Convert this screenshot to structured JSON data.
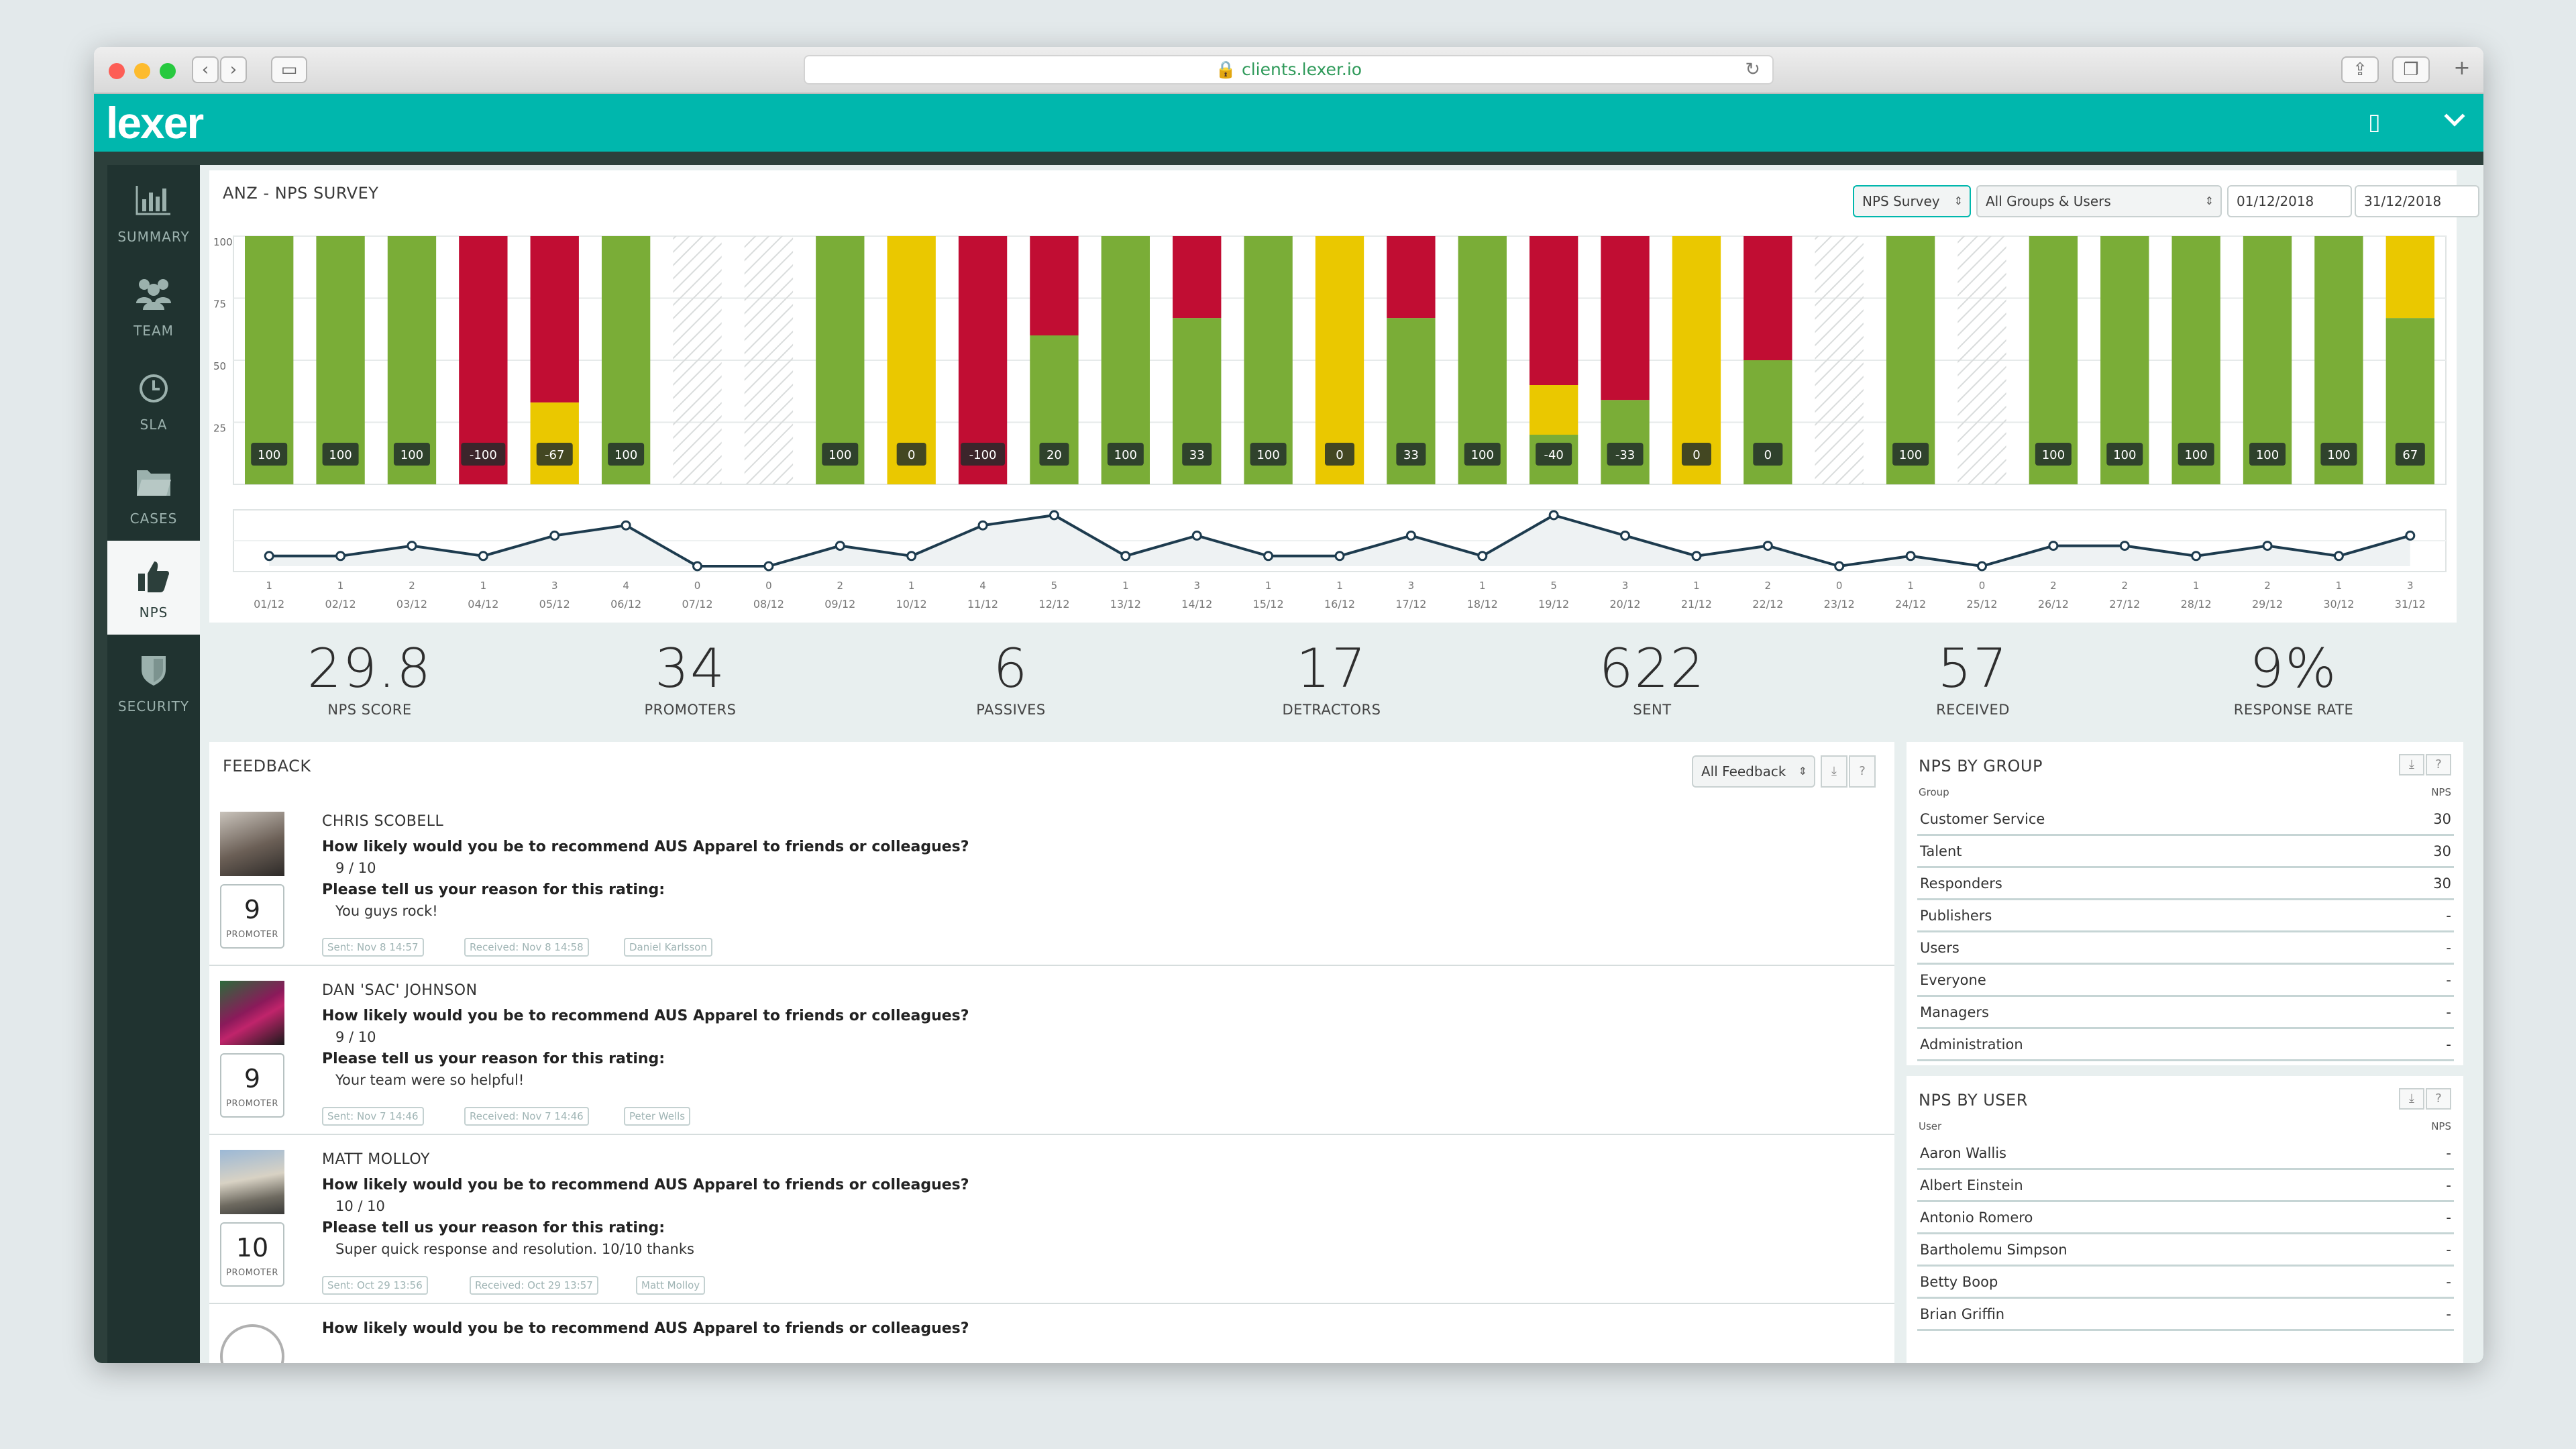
{
  "browser": {
    "url": "clients.lexer.io"
  },
  "app": {
    "logo_text": "lexer"
  },
  "sidebar": {
    "items": [
      {
        "label": "SUMMARY",
        "icon": "bar-chart-icon"
      },
      {
        "label": "TEAM",
        "icon": "team-icon"
      },
      {
        "label": "SLA",
        "icon": "clock-icon"
      },
      {
        "label": "CASES",
        "icon": "folder-icon"
      },
      {
        "label": "NPS",
        "icon": "thumbs-up-icon",
        "active": true
      },
      {
        "label": "SECURITY",
        "icon": "shield-icon"
      }
    ]
  },
  "chart_panel": {
    "title": "ANZ - NPS SURVEY",
    "survey_select": "NPS Survey",
    "group_select": "All Groups & Users",
    "date_from": "01/12/2018",
    "date_to": "31/12/2018",
    "download_icon": "download-icon",
    "help_label": "?"
  },
  "chart_data": {
    "type": "bar",
    "y_ticks": [
      "100",
      "75",
      "50",
      "25"
    ],
    "ylim": [
      0,
      100
    ],
    "categories": [
      "01/12",
      "02/12",
      "03/12",
      "04/12",
      "05/12",
      "06/12",
      "07/12",
      "08/12",
      "09/12",
      "10/12",
      "11/12",
      "12/12",
      "13/12",
      "14/12",
      "15/12",
      "16/12",
      "17/12",
      "18/12",
      "19/12",
      "20/12",
      "21/12",
      "22/12",
      "23/12",
      "24/12",
      "25/12",
      "26/12",
      "27/12",
      "28/12",
      "29/12",
      "30/12",
      "31/12"
    ],
    "nps": [
      "100",
      "100",
      "100",
      "-100",
      "-67",
      "100",
      null,
      null,
      "100",
      "0",
      "-100",
      "20",
      "100",
      "33",
      "100",
      "0",
      "33",
      "100",
      "-40",
      "-33",
      "0",
      "0",
      null,
      "100",
      null,
      "100",
      "100",
      "100",
      "100",
      "100",
      "67"
    ],
    "stacks": [
      [
        100,
        0,
        0
      ],
      [
        100,
        0,
        0
      ],
      [
        100,
        0,
        0
      ],
      [
        0,
        0,
        100
      ],
      [
        0,
        33,
        67
      ],
      [
        100,
        0,
        0
      ],
      null,
      null,
      [
        100,
        0,
        0
      ],
      [
        0,
        100,
        0
      ],
      [
        0,
        0,
        100
      ],
      [
        60,
        0,
        40
      ],
      [
        100,
        0,
        0
      ],
      [
        67,
        0,
        33
      ],
      [
        100,
        0,
        0
      ],
      [
        0,
        100,
        0
      ],
      [
        67,
        0,
        33
      ],
      [
        100,
        0,
        0
      ],
      [
        20,
        20,
        60
      ],
      [
        34,
        0,
        66
      ],
      [
        0,
        100,
        0
      ],
      [
        50,
        0,
        50
      ],
      null,
      [
        100,
        0,
        0
      ],
      null,
      [
        100,
        0,
        0
      ],
      [
        100,
        0,
        0
      ],
      [
        100,
        0,
        0
      ],
      [
        100,
        0,
        0
      ],
      [
        100,
        0,
        0
      ],
      [
        67,
        33,
        0
      ]
    ],
    "series_order": [
      "promoter",
      "passive",
      "detractor"
    ],
    "colors": {
      "promoter": "#7aad37",
      "passive": "#eac800",
      "detractor": "#c10d33",
      "empty_hatch": "#d9dcdc"
    },
    "responses": [
      1,
      1,
      2,
      1,
      3,
      4,
      0,
      0,
      2,
      1,
      4,
      5,
      1,
      3,
      1,
      1,
      3,
      1,
      5,
      3,
      1,
      2,
      0,
      1,
      0,
      2,
      2,
      1,
      2,
      1,
      3
    ],
    "responses_max": 5
  },
  "stats": [
    {
      "value": "29.8",
      "label": "NPS SCORE"
    },
    {
      "value": "34",
      "label": "PROMOTERS"
    },
    {
      "value": "6",
      "label": "PASSIVES"
    },
    {
      "value": "17",
      "label": "DETRACTORS"
    },
    {
      "value": "622",
      "label": "SENT"
    },
    {
      "value": "57",
      "label": "RECEIVED"
    },
    {
      "value": "9%",
      "label": "RESPONSE RATE"
    }
  ],
  "feedback": {
    "title": "FEEDBACK",
    "filter": "All Feedback",
    "items": [
      {
        "name": "CHRIS SCOBELL",
        "question": "How likely would you be to recommend AUS Apparel to friends or colleagues?",
        "rating": "9 / 10",
        "reason_label": "Please tell us your reason for this rating:",
        "reason": "You guys rock!",
        "score": "9",
        "type": "PROMOTER",
        "sent": "Sent: Nov 8 14:57",
        "received": "Received: Nov 8 14:58",
        "agent": "Daniel Karlsson"
      },
      {
        "name": "DAN 'SAC' JOHNSON",
        "question": "How likely would you be to recommend AUS Apparel to friends or colleagues?",
        "rating": "9 / 10",
        "reason_label": "Please tell us your reason for this rating:",
        "reason": "Your team were so helpful!",
        "score": "9",
        "type": "PROMOTER",
        "sent": "Sent: Nov 7 14:46",
        "received": "Received: Nov 7 14:46",
        "agent": "Peter Wells"
      },
      {
        "name": "MATT MOLLOY",
        "question": "How likely would you be to recommend AUS Apparel to friends or colleagues?",
        "rating": "10 / 10",
        "reason_label": "Please tell us your reason for this rating:",
        "reason": "Super quick response and resolution. 10/10 thanks",
        "score": "10",
        "type": "PROMOTER",
        "sent": "Sent: Oct 29 13:56",
        "received": "Received: Oct 29 13:57",
        "agent": "Matt Molloy"
      }
    ],
    "partial_question": "How likely would you be to recommend AUS Apparel to friends or colleagues?"
  },
  "nps_by_group": {
    "title": "NPS BY GROUP",
    "col_name": "Group",
    "col_value": "NPS",
    "rows": [
      {
        "name": "Customer Service",
        "value": "30"
      },
      {
        "name": "Talent",
        "value": "30"
      },
      {
        "name": "Responders",
        "value": "30"
      },
      {
        "name": "Publishers",
        "value": "-"
      },
      {
        "name": "Users",
        "value": "-"
      },
      {
        "name": "Everyone",
        "value": "-"
      },
      {
        "name": "Managers",
        "value": "-"
      },
      {
        "name": "Administration",
        "value": "-"
      }
    ]
  },
  "nps_by_user": {
    "title": "NPS BY USER",
    "col_name": "User",
    "col_value": "NPS",
    "rows": [
      {
        "name": "Aaron Wallis",
        "value": "-"
      },
      {
        "name": "Albert Einstein",
        "value": "-"
      },
      {
        "name": "Antonio Romero",
        "value": "-"
      },
      {
        "name": "Bartholemu Simpson",
        "value": "-"
      },
      {
        "name": "Betty Boop",
        "value": "-"
      },
      {
        "name": "Brian Griffin",
        "value": "-"
      }
    ]
  }
}
